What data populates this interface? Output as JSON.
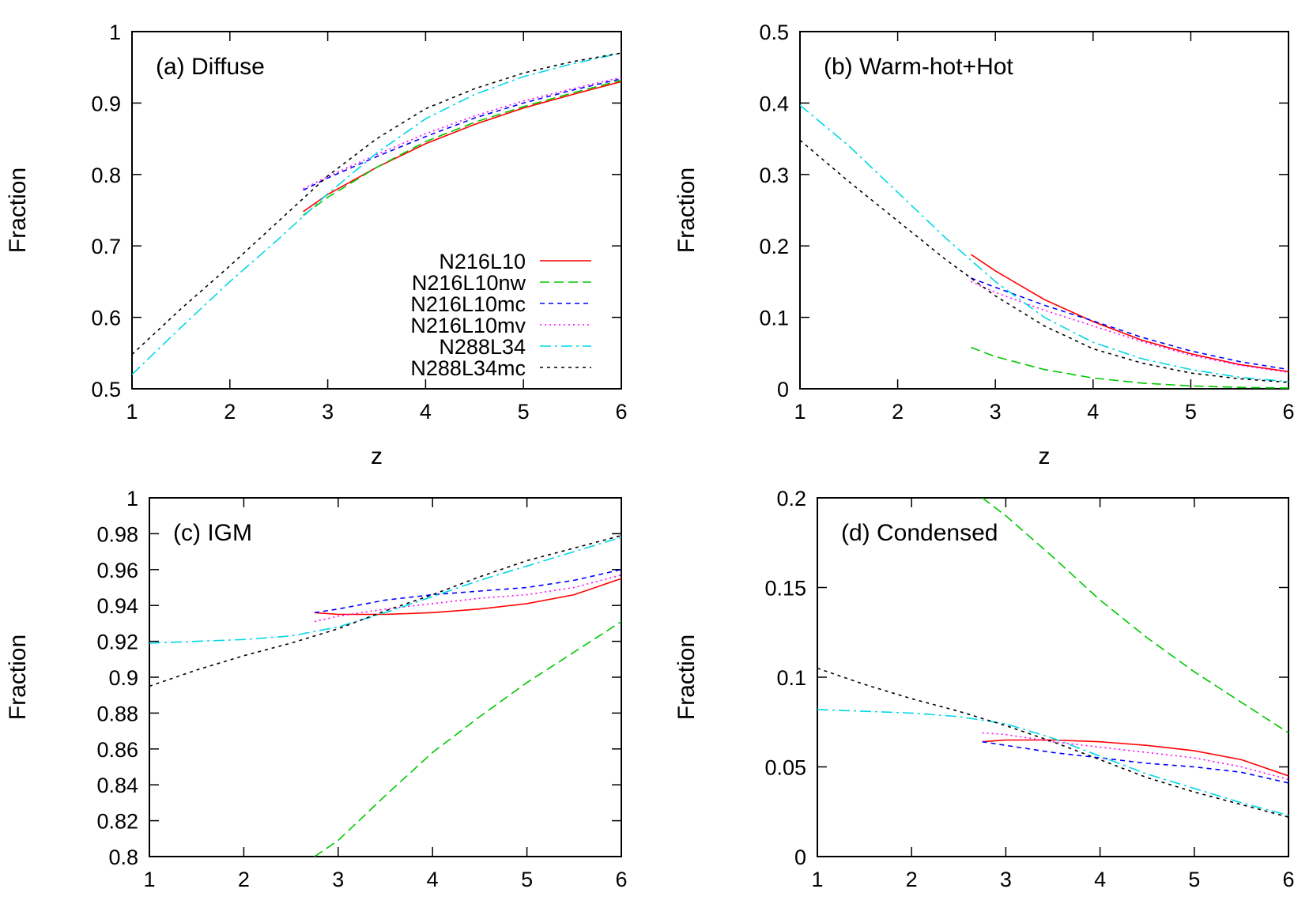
{
  "series_styles": [
    {
      "name": "N216L10",
      "color": "#ff0000",
      "dash": ""
    },
    {
      "name": "N216L10nw",
      "color": "#00c800",
      "dash": "12,6"
    },
    {
      "name": "N216L10mc",
      "color": "#0000ff",
      "dash": "6,5"
    },
    {
      "name": "N216L10mv",
      "color": "#ff00ff",
      "dash": "2,4"
    },
    {
      "name": "N288L34",
      "color": "#00d8e8",
      "dash": "14,5,3,5"
    },
    {
      "name": "N288L34mc",
      "color": "#000000",
      "dash": "4,5"
    }
  ],
  "chart_data": [
    {
      "type": "line",
      "panel_label": "(a) Diffuse",
      "xlabel": "z",
      "ylabel": "Fraction",
      "xlim": [
        1,
        6
      ],
      "ylim": [
        0.5,
        1
      ],
      "x_ticks": [
        "1",
        "2",
        "3",
        "4",
        "5",
        "6"
      ],
      "y_ticks": [
        "0.5",
        "0.6",
        "0.7",
        "0.8",
        "0.9",
        "1"
      ],
      "legend": "bottom-right",
      "series": [
        {
          "name": "N216L10",
          "x": [
            2.75,
            3,
            3.5,
            4,
            4.5,
            5,
            5.5,
            6
          ],
          "y": [
            0.748,
            0.772,
            0.81,
            0.843,
            0.87,
            0.893,
            0.912,
            0.93
          ]
        },
        {
          "name": "N216L10nw",
          "x": [
            2.75,
            3,
            3.5,
            4,
            4.5,
            5,
            5.5,
            6
          ],
          "y": [
            0.743,
            0.768,
            0.81,
            0.846,
            0.873,
            0.895,
            0.914,
            0.932
          ]
        },
        {
          "name": "N216L10mc",
          "x": [
            2.75,
            3,
            3.5,
            4,
            4.5,
            5,
            5.5,
            6
          ],
          "y": [
            0.778,
            0.795,
            0.825,
            0.853,
            0.879,
            0.9,
            0.918,
            0.934
          ]
        },
        {
          "name": "N216L10mv",
          "x": [
            2.75,
            3,
            3.5,
            4,
            4.5,
            5,
            5.5,
            6
          ],
          "y": [
            0.78,
            0.797,
            0.828,
            0.857,
            0.882,
            0.903,
            0.92,
            0.936
          ]
        },
        {
          "name": "N288L34",
          "x": [
            1,
            1.5,
            2,
            2.5,
            3,
            3.5,
            4,
            4.5,
            5,
            5.5,
            6
          ],
          "y": [
            0.52,
            0.586,
            0.65,
            0.71,
            0.773,
            0.83,
            0.878,
            0.912,
            0.937,
            0.955,
            0.97
          ]
        },
        {
          "name": "N288L34mc",
          "x": [
            1,
            1.5,
            2,
            2.5,
            3,
            3.5,
            4,
            4.5,
            5,
            5.5,
            6
          ],
          "y": [
            0.548,
            0.612,
            0.672,
            0.735,
            0.798,
            0.85,
            0.892,
            0.92,
            0.942,
            0.958,
            0.97
          ]
        }
      ]
    },
    {
      "type": "line",
      "panel_label": "(b) Warm-hot+Hot",
      "xlabel": "z",
      "ylabel": "Fraction",
      "xlim": [
        1,
        6
      ],
      "ylim": [
        0,
        0.5
      ],
      "x_ticks": [
        "1",
        "2",
        "3",
        "4",
        "5",
        "6"
      ],
      "y_ticks": [
        "0",
        "0.1",
        "0.2",
        "0.3",
        "0.4",
        "0.5"
      ],
      "series": [
        {
          "name": "N216L10",
          "x": [
            2.75,
            3,
            3.5,
            4,
            4.5,
            5,
            5.5,
            6
          ],
          "y": [
            0.188,
            0.165,
            0.125,
            0.094,
            0.068,
            0.049,
            0.034,
            0.024
          ]
        },
        {
          "name": "N216L10nw",
          "x": [
            2.75,
            3,
            3.5,
            4,
            4.5,
            5,
            5.5,
            6
          ],
          "y": [
            0.058,
            0.045,
            0.027,
            0.015,
            0.008,
            0.004,
            0.002,
            0.001
          ]
        },
        {
          "name": "N216L10mc",
          "x": [
            2.75,
            3,
            3.5,
            4,
            4.5,
            5,
            5.5,
            6
          ],
          "y": [
            0.155,
            0.142,
            0.117,
            0.095,
            0.072,
            0.053,
            0.038,
            0.027
          ]
        },
        {
          "name": "N216L10mv",
          "x": [
            2.75,
            3,
            3.5,
            4,
            4.5,
            5,
            5.5,
            6
          ],
          "y": [
            0.15,
            0.135,
            0.11,
            0.088,
            0.066,
            0.047,
            0.033,
            0.023
          ]
        },
        {
          "name": "N288L34",
          "x": [
            1,
            1.5,
            2,
            2.5,
            3,
            3.5,
            4,
            4.5,
            5,
            5.5,
            6
          ],
          "y": [
            0.397,
            0.34,
            0.275,
            0.21,
            0.15,
            0.1,
            0.065,
            0.042,
            0.027,
            0.016,
            0.01
          ]
        },
        {
          "name": "N288L34mc",
          "x": [
            1,
            1.5,
            2,
            2.5,
            3,
            3.5,
            4,
            4.5,
            5,
            5.5,
            6
          ],
          "y": [
            0.348,
            0.29,
            0.235,
            0.18,
            0.13,
            0.088,
            0.056,
            0.036,
            0.022,
            0.014,
            0.009
          ]
        }
      ]
    },
    {
      "type": "line",
      "panel_label": "(c) IGM",
      "xlabel": "z",
      "ylabel": "Fraction",
      "xlim": [
        1,
        6
      ],
      "ylim": [
        0.8,
        1
      ],
      "x_ticks": [
        "1",
        "2",
        "3",
        "4",
        "5",
        "6"
      ],
      "y_ticks": [
        "0.8",
        "0.82",
        "0.84",
        "0.86",
        "0.88",
        "0.9",
        "0.92",
        "0.94",
        "0.96",
        "0.98",
        "1"
      ],
      "series": [
        {
          "name": "N216L10",
          "x": [
            2.75,
            3,
            3.5,
            4,
            4.5,
            5,
            5.5,
            6
          ],
          "y": [
            0.936,
            0.935,
            0.935,
            0.936,
            0.938,
            0.941,
            0.946,
            0.955
          ]
        },
        {
          "name": "N216L10nw",
          "x": [
            2.75,
            3,
            3.5,
            4,
            4.5,
            5,
            5.5,
            6
          ],
          "y": [
            0.8,
            0.809,
            0.834,
            0.858,
            0.878,
            0.897,
            0.914,
            0.931
          ]
        },
        {
          "name": "N216L10mc",
          "x": [
            2.75,
            3,
            3.5,
            4,
            4.5,
            5,
            5.5,
            6
          ],
          "y": [
            0.936,
            0.938,
            0.943,
            0.946,
            0.948,
            0.95,
            0.954,
            0.96
          ]
        },
        {
          "name": "N216L10mv",
          "x": [
            2.75,
            3,
            3.5,
            4,
            4.5,
            5,
            5.5,
            6
          ],
          "y": [
            0.931,
            0.934,
            0.938,
            0.941,
            0.944,
            0.946,
            0.95,
            0.957
          ]
        },
        {
          "name": "N288L34",
          "x": [
            1,
            1.5,
            2,
            2.5,
            3,
            3.5,
            4,
            4.5,
            5,
            5.5,
            6
          ],
          "y": [
            0.919,
            0.92,
            0.921,
            0.923,
            0.928,
            0.936,
            0.945,
            0.954,
            0.962,
            0.97,
            0.978
          ]
        },
        {
          "name": "N288L34mc",
          "x": [
            1,
            1.5,
            2,
            2.5,
            3,
            3.5,
            4,
            4.5,
            5,
            5.5,
            6
          ],
          "y": [
            0.895,
            0.904,
            0.912,
            0.919,
            0.927,
            0.937,
            0.946,
            0.956,
            0.965,
            0.972,
            0.979
          ]
        }
      ]
    },
    {
      "type": "line",
      "panel_label": "(d) Condensed",
      "xlabel": "z",
      "ylabel": "Fraction",
      "xlim": [
        1,
        6
      ],
      "ylim": [
        0,
        0.2
      ],
      "x_ticks": [
        "1",
        "2",
        "3",
        "4",
        "5",
        "6"
      ],
      "y_ticks": [
        "0",
        "0.05",
        "0.1",
        "0.15",
        "0.2"
      ],
      "series": [
        {
          "name": "N216L10",
          "x": [
            2.75,
            3,
            3.5,
            4,
            4.5,
            5,
            5.5,
            6
          ],
          "y": [
            0.064,
            0.065,
            0.065,
            0.064,
            0.062,
            0.059,
            0.054,
            0.045
          ]
        },
        {
          "name": "N216L10nw",
          "x": [
            2.75,
            3,
            3.5,
            4,
            4.5,
            5,
            5.5,
            6
          ],
          "y": [
            0.2,
            0.19,
            0.167,
            0.143,
            0.122,
            0.103,
            0.086,
            0.069
          ]
        },
        {
          "name": "N216L10mc",
          "x": [
            2.75,
            3,
            3.5,
            4,
            4.5,
            5,
            5.5,
            6
          ],
          "y": [
            0.064,
            0.062,
            0.058,
            0.055,
            0.052,
            0.05,
            0.047,
            0.041
          ]
        },
        {
          "name": "N216L10mv",
          "x": [
            2.75,
            3,
            3.5,
            4,
            4.5,
            5,
            5.5,
            6
          ],
          "y": [
            0.069,
            0.068,
            0.064,
            0.061,
            0.058,
            0.055,
            0.05,
            0.043
          ]
        },
        {
          "name": "N288L34",
          "x": [
            1,
            1.5,
            2,
            2.5,
            3,
            3.5,
            4,
            4.5,
            5,
            5.5,
            6
          ],
          "y": [
            0.082,
            0.081,
            0.08,
            0.078,
            0.074,
            0.066,
            0.056,
            0.046,
            0.038,
            0.03,
            0.023
          ]
        },
        {
          "name": "N288L34mc",
          "x": [
            1,
            1.5,
            2,
            2.5,
            3,
            3.5,
            4,
            4.5,
            5,
            5.5,
            6
          ],
          "y": [
            0.105,
            0.096,
            0.088,
            0.081,
            0.073,
            0.064,
            0.054,
            0.044,
            0.036,
            0.029,
            0.022
          ]
        }
      ]
    }
  ]
}
